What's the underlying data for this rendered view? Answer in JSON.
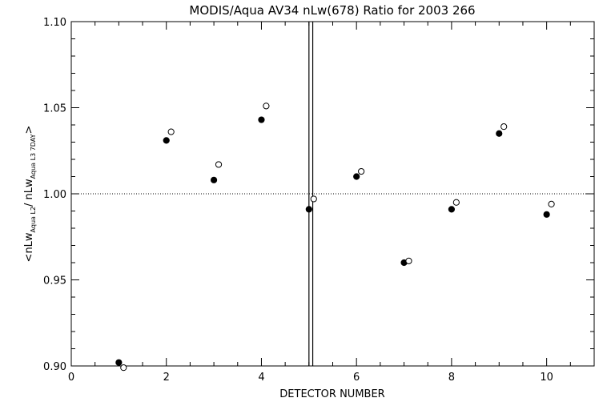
{
  "chart_data": {
    "type": "scatter",
    "title": "MODIS/Aqua AV34 nLw(678) Ratio for 2003 266",
    "xlabel": "DETECTOR NUMBER",
    "ylabel": {
      "open": "<nLw",
      "sub1": "Aqua L2",
      "mid": "/ nLw",
      "sub2": "Aqua L3 7DAY",
      "close": ">"
    },
    "xlim": [
      0,
      11
    ],
    "ylim": [
      0.9,
      1.1
    ],
    "xticks": [
      0,
      2,
      4,
      6,
      8,
      10
    ],
    "yticks": [
      0.9,
      0.95,
      1.0,
      1.05,
      1.1
    ],
    "reference_line_y": 1.0,
    "vertical_lines_x": [
      5.0,
      5.08
    ],
    "series": [
      {
        "marker": "filled-circle",
        "x": [
          1,
          2,
          3,
          4,
          5,
          6,
          7,
          8,
          9,
          10
        ],
        "y": [
          0.902,
          1.031,
          1.008,
          1.043,
          0.991,
          1.01,
          0.96,
          0.991,
          1.035,
          0.988
        ]
      },
      {
        "marker": "open-circle",
        "x": [
          1.1,
          2.1,
          3.1,
          4.1,
          5.1,
          6.1,
          7.1,
          8.1,
          9.1,
          10.1
        ],
        "y": [
          0.899,
          1.036,
          1.017,
          1.051,
          0.997,
          1.013,
          0.961,
          0.995,
          1.039,
          0.994
        ]
      }
    ]
  }
}
